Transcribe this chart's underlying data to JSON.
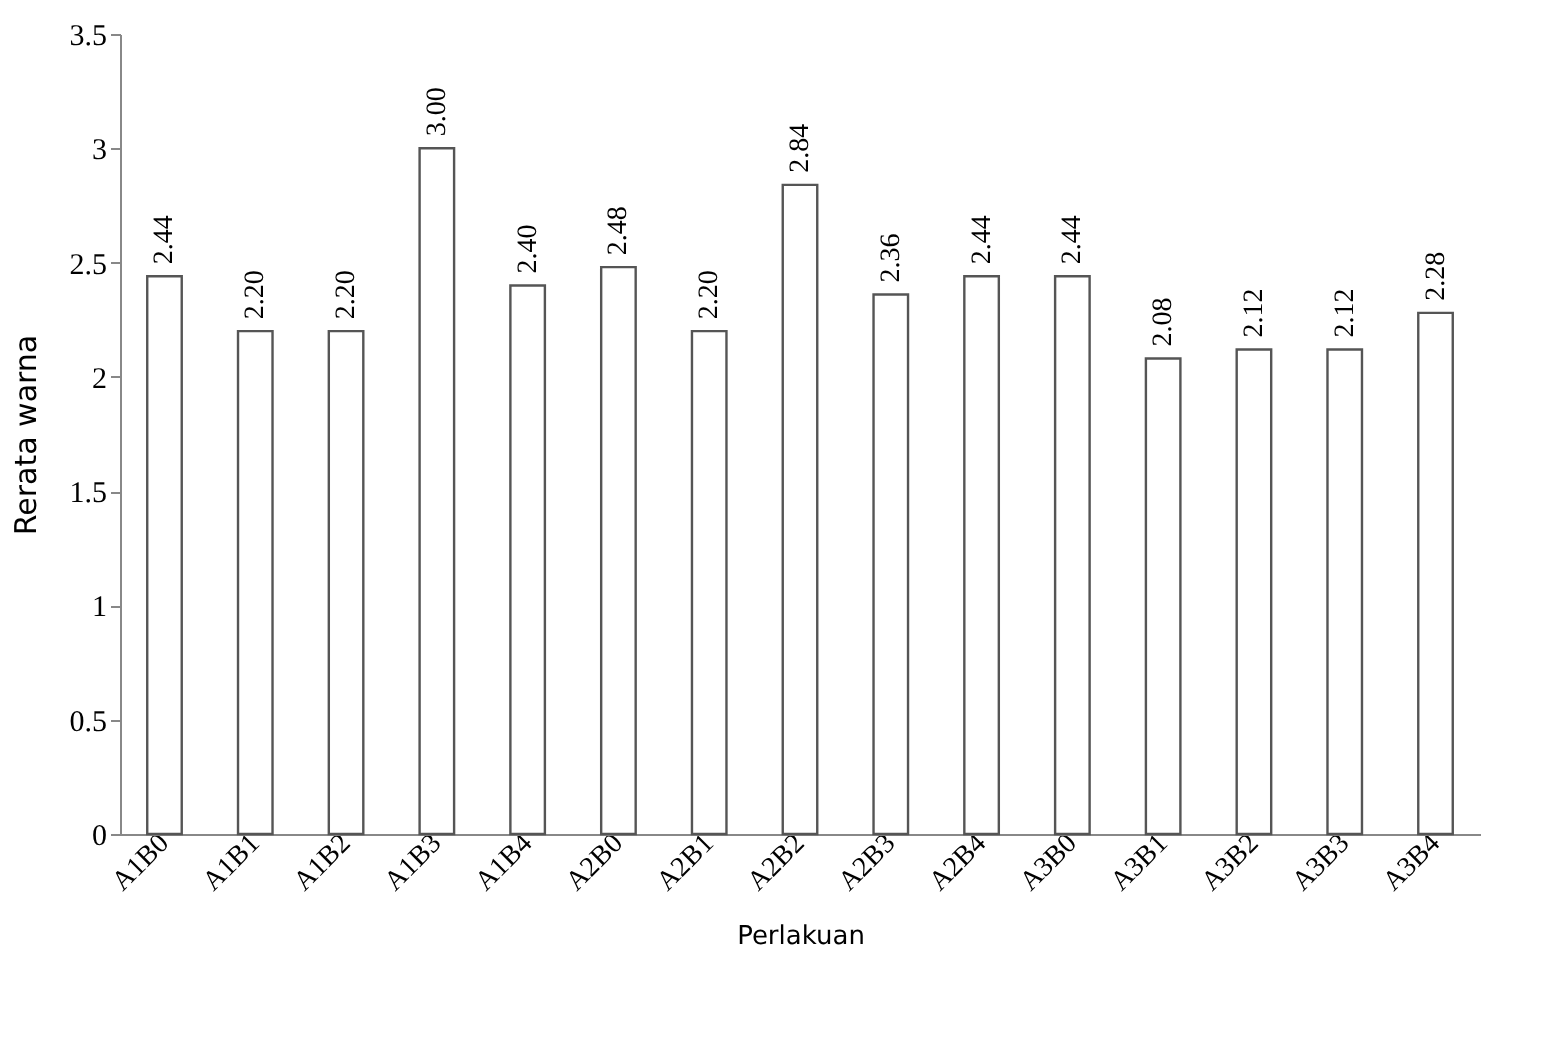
{
  "chart_data": {
    "type": "bar",
    "xlabel": "Perlakuan",
    "ylabel": "Rerata warna",
    "categories": [
      "A1B0",
      "A1B1",
      "A1B2",
      "A1B3",
      "A1B4",
      "A2B0",
      "A2B1",
      "A2B2",
      "A2B3",
      "A2B4",
      "A3B0",
      "A3B1",
      "A3B2",
      "A3B3",
      "A3B4"
    ],
    "values": [
      2.44,
      2.2,
      2.2,
      3.0,
      2.4,
      2.48,
      2.2,
      2.84,
      2.36,
      2.44,
      2.44,
      2.08,
      2.12,
      2.12,
      2.28
    ],
    "value_labels": [
      "2.44",
      "2.20",
      "2.20",
      "3.00",
      "2.40",
      "2.48",
      "2.20",
      "2.84",
      "2.36",
      "2.44",
      "2.44",
      "2.08",
      "2.12",
      "2.12",
      "2.28"
    ],
    "color": "#ffffff",
    "ylim": [
      0,
      3.5
    ],
    "yticks": [
      0,
      0.5,
      1,
      1.5,
      2,
      2.5,
      3,
      3.5
    ],
    "grid": false
  }
}
